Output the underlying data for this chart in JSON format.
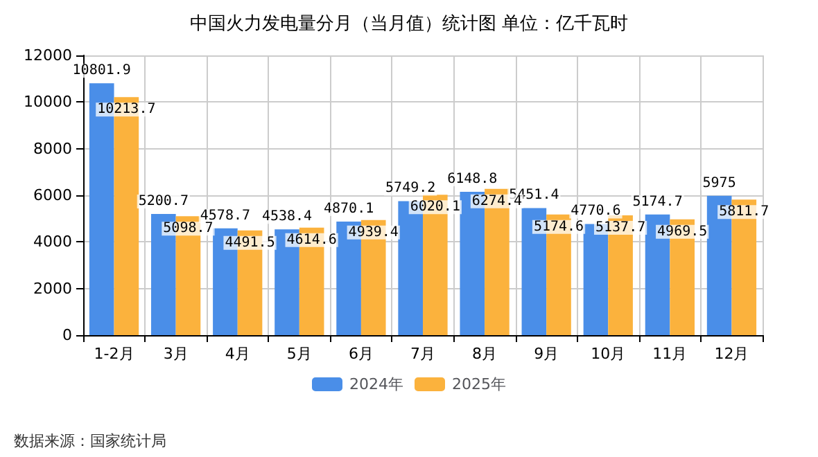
{
  "chart_data": {
    "type": "bar",
    "title": "中国火力发电量分月（当月值）统计图 单位：亿千瓦时",
    "categories": [
      "1-2月",
      "3月",
      "4月",
      "5月",
      "6月",
      "7月",
      "8月",
      "9月",
      "10月",
      "11月",
      "12月"
    ],
    "series": [
      {
        "name": "2024年",
        "color": "#4a8ee8",
        "values": [
          10801.9,
          5200.7,
          4578.7,
          4538.4,
          4870.1,
          5749.2,
          6148.8,
          5451.4,
          4770.6,
          5174.7,
          5975
        ]
      },
      {
        "name": "2025年",
        "color": "#fbb23d",
        "values": [
          10213.7,
          5098.7,
          4491.5,
          4614.6,
          4939.4,
          6020.1,
          6274.4,
          5174.6,
          5137.7,
          4969.5,
          5811.7
        ]
      }
    ],
    "ylim": [
      0,
      12000
    ],
    "yticks": [
      0,
      2000,
      4000,
      6000,
      8000,
      10000,
      12000
    ],
    "grid": true,
    "legend": "bottom",
    "data_labels": true,
    "annotations": [
      "数据来源：国家统计局"
    ]
  }
}
